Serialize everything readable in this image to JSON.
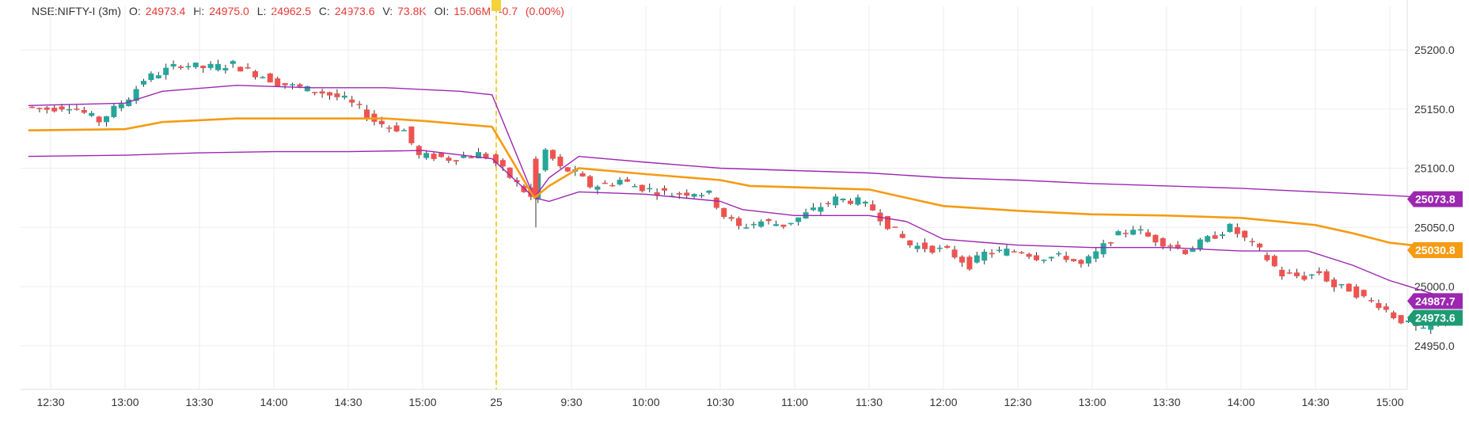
{
  "header": {
    "symbol": "NSE:NIFTY-I (3m)",
    "o_label": "O:",
    "o": "24973.4",
    "h_label": "H:",
    "h": "24975.0",
    "l_label": "L:",
    "l": "24962.5",
    "c_label": "C:",
    "c": "24973.6",
    "v_label": "V:",
    "v": "73.8K",
    "oi_label": "OI:",
    "oi": "15.06M",
    "change": "-0.7",
    "change_pct": "(0.00%)"
  },
  "colors": {
    "up": "#26a69a",
    "down": "#ef5350",
    "wick": "#333333",
    "vwap": "#f59b14",
    "band": "#9c27b0",
    "session": "#f3d23b",
    "last_price": "#1e9b73",
    "grid": "#eeeeee"
  },
  "chart_data": {
    "type": "candlestick",
    "interval": "3m",
    "ylim": [
      24910,
      25230
    ],
    "y_ticks": [
      "25200.0",
      "25150.0",
      "25100.0",
      "25050.0",
      "25000.0",
      "24950.0"
    ],
    "x_ticks": [
      "12:30",
      "13:00",
      "13:30",
      "14:00",
      "14:30",
      "15:00",
      "25",
      "9:30",
      "10:00",
      "10:30",
      "11:00",
      "11:30",
      "12:00",
      "12:30",
      "13:00",
      "13:30",
      "14:00",
      "14:30",
      "15:00"
    ],
    "price_tags": [
      {
        "value": 25073.8,
        "label": "25073.8",
        "series": "upper-band"
      },
      {
        "value": 25030.8,
        "label": "25030.8",
        "series": "vwap"
      },
      {
        "value": 24987.7,
        "label": "24987.7",
        "series": "lower-band"
      },
      {
        "value": 24973.6,
        "label": "24973.6",
        "series": "last-price"
      }
    ],
    "close_trace": [
      [
        "12:21",
        25152
      ],
      [
        "12:30",
        25150
      ],
      [
        "12:39",
        25153
      ],
      [
        "12:51",
        25140
      ],
      [
        "12:57",
        25150
      ],
      [
        "13:03",
        25160
      ],
      [
        "13:09",
        25175
      ],
      [
        "13:18",
        25183
      ],
      [
        "13:24",
        25188
      ],
      [
        "13:33",
        25185
      ],
      [
        "13:39",
        25186
      ],
      [
        "13:45",
        25188
      ],
      [
        "13:51",
        25182
      ],
      [
        "13:57",
        25178
      ],
      [
        "14:03",
        25172
      ],
      [
        "14:12",
        25168
      ],
      [
        "14:21",
        25164
      ],
      [
        "14:30",
        25158
      ],
      [
        "14:36",
        25150
      ],
      [
        "14:42",
        25140
      ],
      [
        "14:48",
        25135
      ],
      [
        "14:54",
        25132
      ],
      [
        "15:00",
        25110
      ],
      [
        "15:06",
        25110
      ],
      [
        "15:12",
        25108
      ],
      [
        "15:18",
        25110
      ],
      [
        "15:24",
        25112
      ],
      [
        "15:28",
        25110
      ],
      [
        "9:15",
        25075
      ],
      [
        "9:21",
        25115
      ],
      [
        "9:27",
        25100
      ],
      [
        "9:33",
        25096
      ],
      [
        "9:39",
        25085
      ],
      [
        "9:45",
        25086
      ],
      [
        "9:51",
        25090
      ],
      [
        "9:57",
        25085
      ],
      [
        "10:03",
        25082
      ],
      [
        "10:12",
        25078
      ],
      [
        "10:21",
        25080
      ],
      [
        "10:27",
        25078
      ],
      [
        "10:33",
        25060
      ],
      [
        "10:39",
        25050
      ],
      [
        "10:48",
        25055
      ],
      [
        "10:57",
        25052
      ],
      [
        "11:03",
        25058
      ],
      [
        "11:12",
        25068
      ],
      [
        "11:18",
        25074
      ],
      [
        "11:27",
        25072
      ],
      [
        "11:33",
        25065
      ],
      [
        "11:39",
        25052
      ],
      [
        "11:48",
        25035
      ],
      [
        "11:57",
        25032
      ],
      [
        "12:03",
        25030
      ],
      [
        "12:12",
        25018
      ],
      [
        "12:18",
        25028
      ],
      [
        "12:27",
        25030
      ],
      [
        "12:33",
        25030
      ],
      [
        "12:39",
        25025
      ],
      [
        "12:51",
        25025
      ],
      [
        "12:57",
        25018
      ],
      [
        "13:03",
        25028
      ],
      [
        "13:09",
        25040
      ],
      [
        "13:18",
        25050
      ],
      [
        "13:24",
        25042
      ],
      [
        "13:33",
        25035
      ],
      [
        "13:39",
        25030
      ],
      [
        "13:48",
        25040
      ],
      [
        "13:57",
        25050
      ],
      [
        "14:03",
        25040
      ],
      [
        "14:09",
        25030
      ],
      [
        "14:18",
        25010
      ],
      [
        "14:27",
        25008
      ],
      [
        "14:33",
        25012
      ],
      [
        "14:39",
        25000
      ],
      [
        "14:45",
        24998
      ],
      [
        "14:51",
        24990
      ],
      [
        "14:57",
        24985
      ],
      [
        "15:03",
        24975
      ],
      [
        "15:09",
        24968
      ],
      [
        "15:15",
        24962
      ],
      [
        "15:21",
        24970
      ],
      [
        "15:27",
        24973.6
      ]
    ],
    "upper_band_trace": [
      [
        "12:21",
        25153
      ],
      [
        "13:00",
        25155
      ],
      [
        "13:15",
        25165
      ],
      [
        "13:45",
        25170
      ],
      [
        "14:15",
        25168
      ],
      [
        "14:45",
        25168
      ],
      [
        "15:15",
        25165
      ],
      [
        "15:28",
        25162
      ],
      [
        "9:15",
        25075
      ],
      [
        "9:21",
        25092
      ],
      [
        "9:33",
        25110
      ],
      [
        "10:00",
        25105
      ],
      [
        "10:30",
        25100
      ],
      [
        "11:00",
        25098
      ],
      [
        "11:30",
        25096
      ],
      [
        "12:00",
        25092
      ],
      [
        "12:30",
        25090
      ],
      [
        "13:00",
        25087
      ],
      [
        "13:30",
        25085
      ],
      [
        "14:00",
        25083
      ],
      [
        "14:30",
        25080
      ],
      [
        "15:00",
        25077
      ],
      [
        "15:27",
        25073.8
      ]
    ],
    "vwap_trace": [
      [
        "12:21",
        25132
      ],
      [
        "13:00",
        25133
      ],
      [
        "13:15",
        25139
      ],
      [
        "13:45",
        25142
      ],
      [
        "14:15",
        25142
      ],
      [
        "14:45",
        25142
      ],
      [
        "15:00",
        25140
      ],
      [
        "15:28",
        25135
      ],
      [
        "9:15",
        25075
      ],
      [
        "9:21",
        25085
      ],
      [
        "9:33",
        25100
      ],
      [
        "10:00",
        25095
      ],
      [
        "10:30",
        25090
      ],
      [
        "10:42",
        25085
      ],
      [
        "11:30",
        25082
      ],
      [
        "11:45",
        25075
      ],
      [
        "12:00",
        25068
      ],
      [
        "12:30",
        25064
      ],
      [
        "13:00",
        25061
      ],
      [
        "13:30",
        25060
      ],
      [
        "14:00",
        25058
      ],
      [
        "14:30",
        25052
      ],
      [
        "14:45",
        25045
      ],
      [
        "15:00",
        25037
      ],
      [
        "15:27",
        25030.8
      ]
    ],
    "lower_band_trace": [
      [
        "12:21",
        25110
      ],
      [
        "13:00",
        25111
      ],
      [
        "13:30",
        25113
      ],
      [
        "14:00",
        25114
      ],
      [
        "14:30",
        25114
      ],
      [
        "15:00",
        25115
      ],
      [
        "15:28",
        25108
      ],
      [
        "9:15",
        25075
      ],
      [
        "9:21",
        25072
      ],
      [
        "9:33",
        25080
      ],
      [
        "10:00",
        25078
      ],
      [
        "10:30",
        25072
      ],
      [
        "10:39",
        25065
      ],
      [
        "11:00",
        25060
      ],
      [
        "11:30",
        25060
      ],
      [
        "11:45",
        25055
      ],
      [
        "12:00",
        25040
      ],
      [
        "12:30",
        25035
      ],
      [
        "13:00",
        25033
      ],
      [
        "13:30",
        25033
      ],
      [
        "14:00",
        25030
      ],
      [
        "14:27",
        25030
      ],
      [
        "14:45",
        25018
      ],
      [
        "15:00",
        25005
      ],
      [
        "15:27",
        24987.7
      ]
    ]
  }
}
